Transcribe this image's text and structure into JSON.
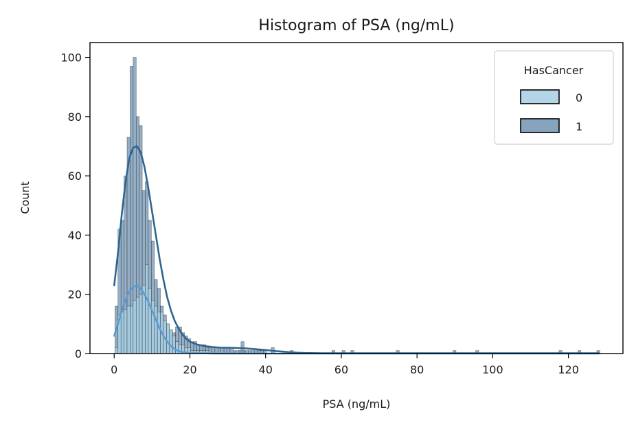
{
  "chart_data": {
    "type": "bar",
    "title": "Histogram of PSA (ng/mL)",
    "xlabel": "PSA (ng/mL)",
    "ylabel": "Count",
    "xlim": [
      -6.4,
      134.4
    ],
    "ylim": [
      0,
      105
    ],
    "x_ticks": [
      0,
      20,
      40,
      60,
      80,
      100,
      120
    ],
    "y_ticks": [
      0,
      20,
      40,
      60,
      80,
      100
    ],
    "x_tick_labels": [
      "0",
      "20",
      "40",
      "60",
      "80",
      "100",
      "120"
    ],
    "y_tick_labels": [
      "0",
      "20",
      "40",
      "60",
      "80",
      "100"
    ],
    "grid": false,
    "legend": {
      "title": "HasCancer",
      "position": "top-right",
      "entries": [
        "0",
        "1"
      ]
    },
    "bin_width": 0.8,
    "bin_start": 0.2,
    "series": [
      {
        "name": "0",
        "color": "#a6cee3",
        "kde_color": "#5a9bd0",
        "counts": [
          2,
          13,
          14,
          15,
          16,
          16,
          18,
          19,
          20,
          23,
          30,
          22,
          18,
          16,
          14,
          14,
          11,
          10,
          8,
          6,
          4,
          3,
          3,
          2,
          2,
          1,
          1,
          1,
          1,
          1,
          1,
          0,
          0,
          0,
          0,
          0,
          0,
          0,
          0,
          0,
          0,
          0,
          0,
          0,
          0,
          0,
          0,
          0,
          0,
          0
        ],
        "kde_x": [
          0,
          1,
          2,
          3,
          4,
          5,
          6,
          7,
          8,
          9,
          10,
          11,
          12,
          13,
          14,
          15,
          16,
          17,
          18,
          19,
          20,
          22,
          24,
          26,
          28,
          30,
          35,
          40,
          50,
          60,
          80,
          100,
          120,
          128
        ],
        "kde_y": [
          6,
          10,
          14.5,
          18,
          21,
          22.5,
          23,
          22,
          20,
          17.5,
          14.5,
          11.5,
          8.5,
          6,
          4,
          2.5,
          1.5,
          0.8,
          0.5,
          0.3,
          0.2,
          0.1,
          0.1,
          0,
          0,
          0,
          0,
          0,
          0,
          0,
          0,
          0,
          0,
          0
        ]
      },
      {
        "name": "1",
        "color": "#7294b3",
        "kde_color": "#2e6590",
        "counts": [
          16,
          42,
          45,
          60,
          73,
          97,
          100,
          80,
          77,
          55,
          58,
          45,
          38,
          25,
          22,
          16,
          13,
          10,
          8,
          7,
          9,
          9,
          7,
          6,
          5,
          4,
          4,
          3,
          3,
          3,
          2,
          2,
          2,
          2,
          2,
          2,
          2,
          2,
          2,
          1,
          1,
          1,
          1,
          1,
          1,
          1,
          1,
          1,
          1,
          1
        ],
        "kde_x": [
          0,
          1,
          2,
          3,
          4,
          5,
          6,
          7,
          8,
          9,
          10,
          11,
          12,
          13,
          14,
          15,
          16,
          17,
          18,
          19,
          20,
          22,
          24,
          26,
          28,
          30,
          32,
          34,
          36,
          38,
          40,
          42,
          44,
          46,
          48,
          50,
          55,
          60,
          70,
          80,
          90,
          100,
          110,
          120,
          128
        ],
        "kde_y": [
          23,
          34,
          47,
          58,
          66,
          69.5,
          70,
          68,
          63,
          56,
          48,
          40,
          32,
          25,
          19,
          14.5,
          11,
          8.5,
          6.5,
          5,
          4,
          3,
          2.5,
          2.2,
          2,
          2,
          1.9,
          1.8,
          1.6,
          1.4,
          1.2,
          0.9,
          0.7,
          0.5,
          0.3,
          0.2,
          0.1,
          0.1,
          0.1,
          0.1,
          0.1,
          0.1,
          0.1,
          0.1,
          0.1
        ]
      }
    ],
    "outlier_bars": [
      {
        "x": 33.5,
        "value": 4
      },
      {
        "x": 41.5,
        "value": 2
      },
      {
        "x": 46.5,
        "value": 1
      },
      {
        "x": 57.5,
        "value": 1
      },
      {
        "x": 60.2,
        "value": 1
      },
      {
        "x": 62.5,
        "value": 1
      },
      {
        "x": 74.5,
        "value": 1
      },
      {
        "x": 89.5,
        "value": 1
      },
      {
        "x": 95.5,
        "value": 1
      },
      {
        "x": 117.5,
        "value": 1
      },
      {
        "x": 122.5,
        "value": 1
      },
      {
        "x": 127.5,
        "value": 1
      }
    ]
  }
}
